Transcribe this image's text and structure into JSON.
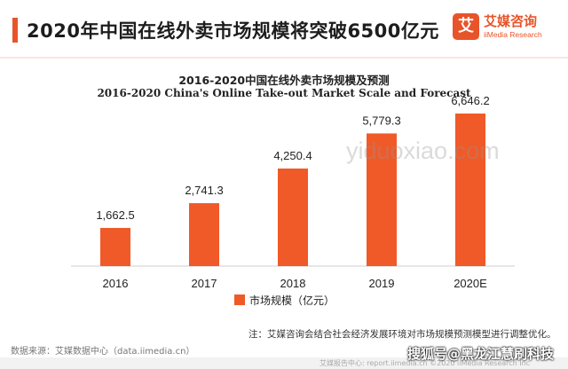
{
  "header": {
    "title": "2020年中国在线外卖市场规模将突破6500亿元"
  },
  "logo": {
    "mark": "艾",
    "name_cn": "艾媒咨询",
    "name_en": "iiMedia Research"
  },
  "colors": {
    "accent": "#e8542a",
    "bar": "#f05a28"
  },
  "chart_data": {
    "type": "bar",
    "title": "2016-2020中国在线外卖市场规模及预测",
    "subtitle": "2016-2020 China's Online Take-out Market Scale and Forecast",
    "categories": [
      "2016",
      "2017",
      "2018",
      "2019",
      "2020E"
    ],
    "series": [
      {
        "name": "市场规模（亿元）",
        "values": [
          1662.5,
          2741.3,
          4250.4,
          5779.3,
          6646.2
        ]
      }
    ],
    "value_labels": [
      "1,662.5",
      "2,741.3",
      "4,250.4",
      "5,779.3",
      "6,646.2"
    ],
    "ylim": [
      0,
      6646.2
    ],
    "grid": false,
    "legend": "bottom"
  },
  "note": "注：艾媒咨询会结合社会经济发展环境对市场规模预测模型进行调整优化。",
  "source": "数据来源：艾媒数据中心（data.iimedia.cn）",
  "watermark": "yiduoxiao.com",
  "footer": "艾媒报告中心: report.iimedia.cn  ©2020  iiMedia Research  Inc",
  "overlay": "搜狐号@黑龙江慧刷科技"
}
